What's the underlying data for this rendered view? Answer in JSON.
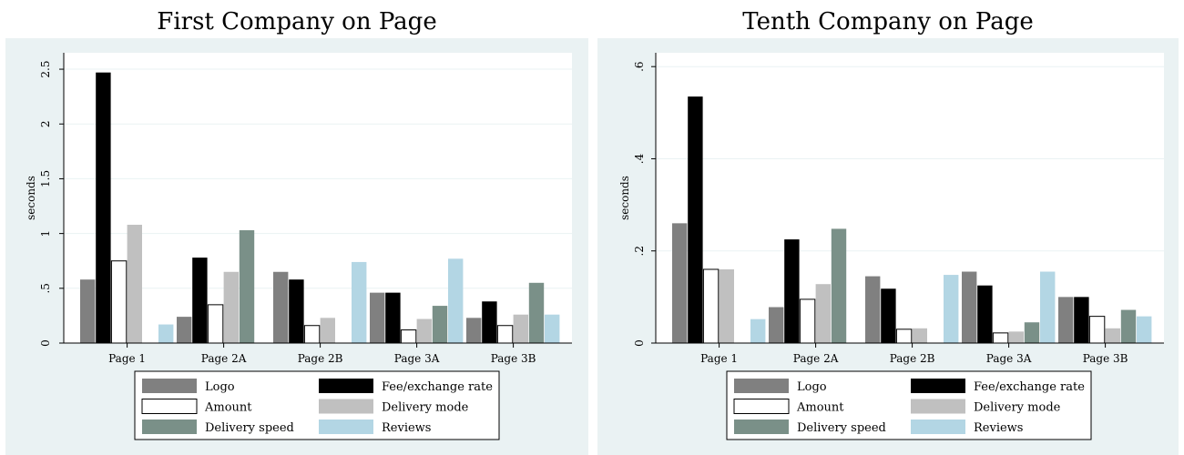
{
  "chart_data": [
    {
      "type": "bar",
      "title": "First Company on Page",
      "xlabel": "",
      "ylabel": "seconds",
      "ylim": [
        0,
        2.65
      ],
      "yticks": [
        0,
        0.5,
        1,
        1.5,
        2,
        2.5
      ],
      "ytick_labels": [
        "0",
        ".5",
        "1",
        "1.5",
        "2",
        "2.5"
      ],
      "grid": true,
      "legend_position": "bottom",
      "categories": [
        "Page 1",
        "Page 2A",
        "Page 2B",
        "Page 3A",
        "Page 3B"
      ],
      "series": [
        {
          "name": "Logo",
          "color": "#808080",
          "values": [
            0.58,
            0.24,
            0.65,
            0.46,
            0.23
          ]
        },
        {
          "name": "Fee/exchange rate",
          "color": "#000000",
          "values": [
            2.47,
            0.78,
            0.58,
            0.46,
            0.38
          ]
        },
        {
          "name": "Amount",
          "color": "#ffffff",
          "values": [
            0.75,
            0.35,
            0.16,
            0.12,
            0.16
          ]
        },
        {
          "name": "Delivery mode",
          "color": "#c0c0c0",
          "values": [
            1.08,
            0.65,
            0.23,
            0.22,
            0.26
          ]
        },
        {
          "name": "Delivery speed",
          "color": "#7a9088",
          "values": [
            0,
            1.03,
            0,
            0.34,
            0.55
          ]
        },
        {
          "name": "Reviews",
          "color": "#b3d6e4",
          "values": [
            0.17,
            0,
            0.74,
            0.77,
            0.26
          ]
        }
      ]
    },
    {
      "type": "bar",
      "title": "Tenth Company on Page",
      "xlabel": "",
      "ylabel": "seconds",
      "ylim": [
        0,
        0.63
      ],
      "yticks": [
        0,
        0.2,
        0.4,
        0.6
      ],
      "ytick_labels": [
        "0",
        ".2",
        ".4",
        ".6"
      ],
      "grid": true,
      "legend_position": "bottom",
      "categories": [
        "Page 1",
        "Page 2A",
        "Page 2B",
        "Page 3A",
        "Page 3B"
      ],
      "series": [
        {
          "name": "Logo",
          "color": "#808080",
          "values": [
            0.26,
            0.078,
            0.145,
            0.155,
            0.1
          ]
        },
        {
          "name": "Fee/exchange rate",
          "color": "#000000",
          "values": [
            0.535,
            0.225,
            0.118,
            0.125,
            0.1
          ]
        },
        {
          "name": "Amount",
          "color": "#ffffff",
          "values": [
            0.16,
            0.095,
            0.03,
            0.022,
            0.058
          ]
        },
        {
          "name": "Delivery mode",
          "color": "#c0c0c0",
          "values": [
            0.16,
            0.128,
            0.032,
            0.025,
            0.032
          ]
        },
        {
          "name": "Delivery speed",
          "color": "#7a9088",
          "values": [
            0,
            0.248,
            0,
            0.045,
            0.072
          ]
        },
        {
          "name": "Reviews",
          "color": "#b3d6e4",
          "values": [
            0.052,
            0,
            0.148,
            0.155,
            0.058
          ]
        }
      ]
    }
  ]
}
